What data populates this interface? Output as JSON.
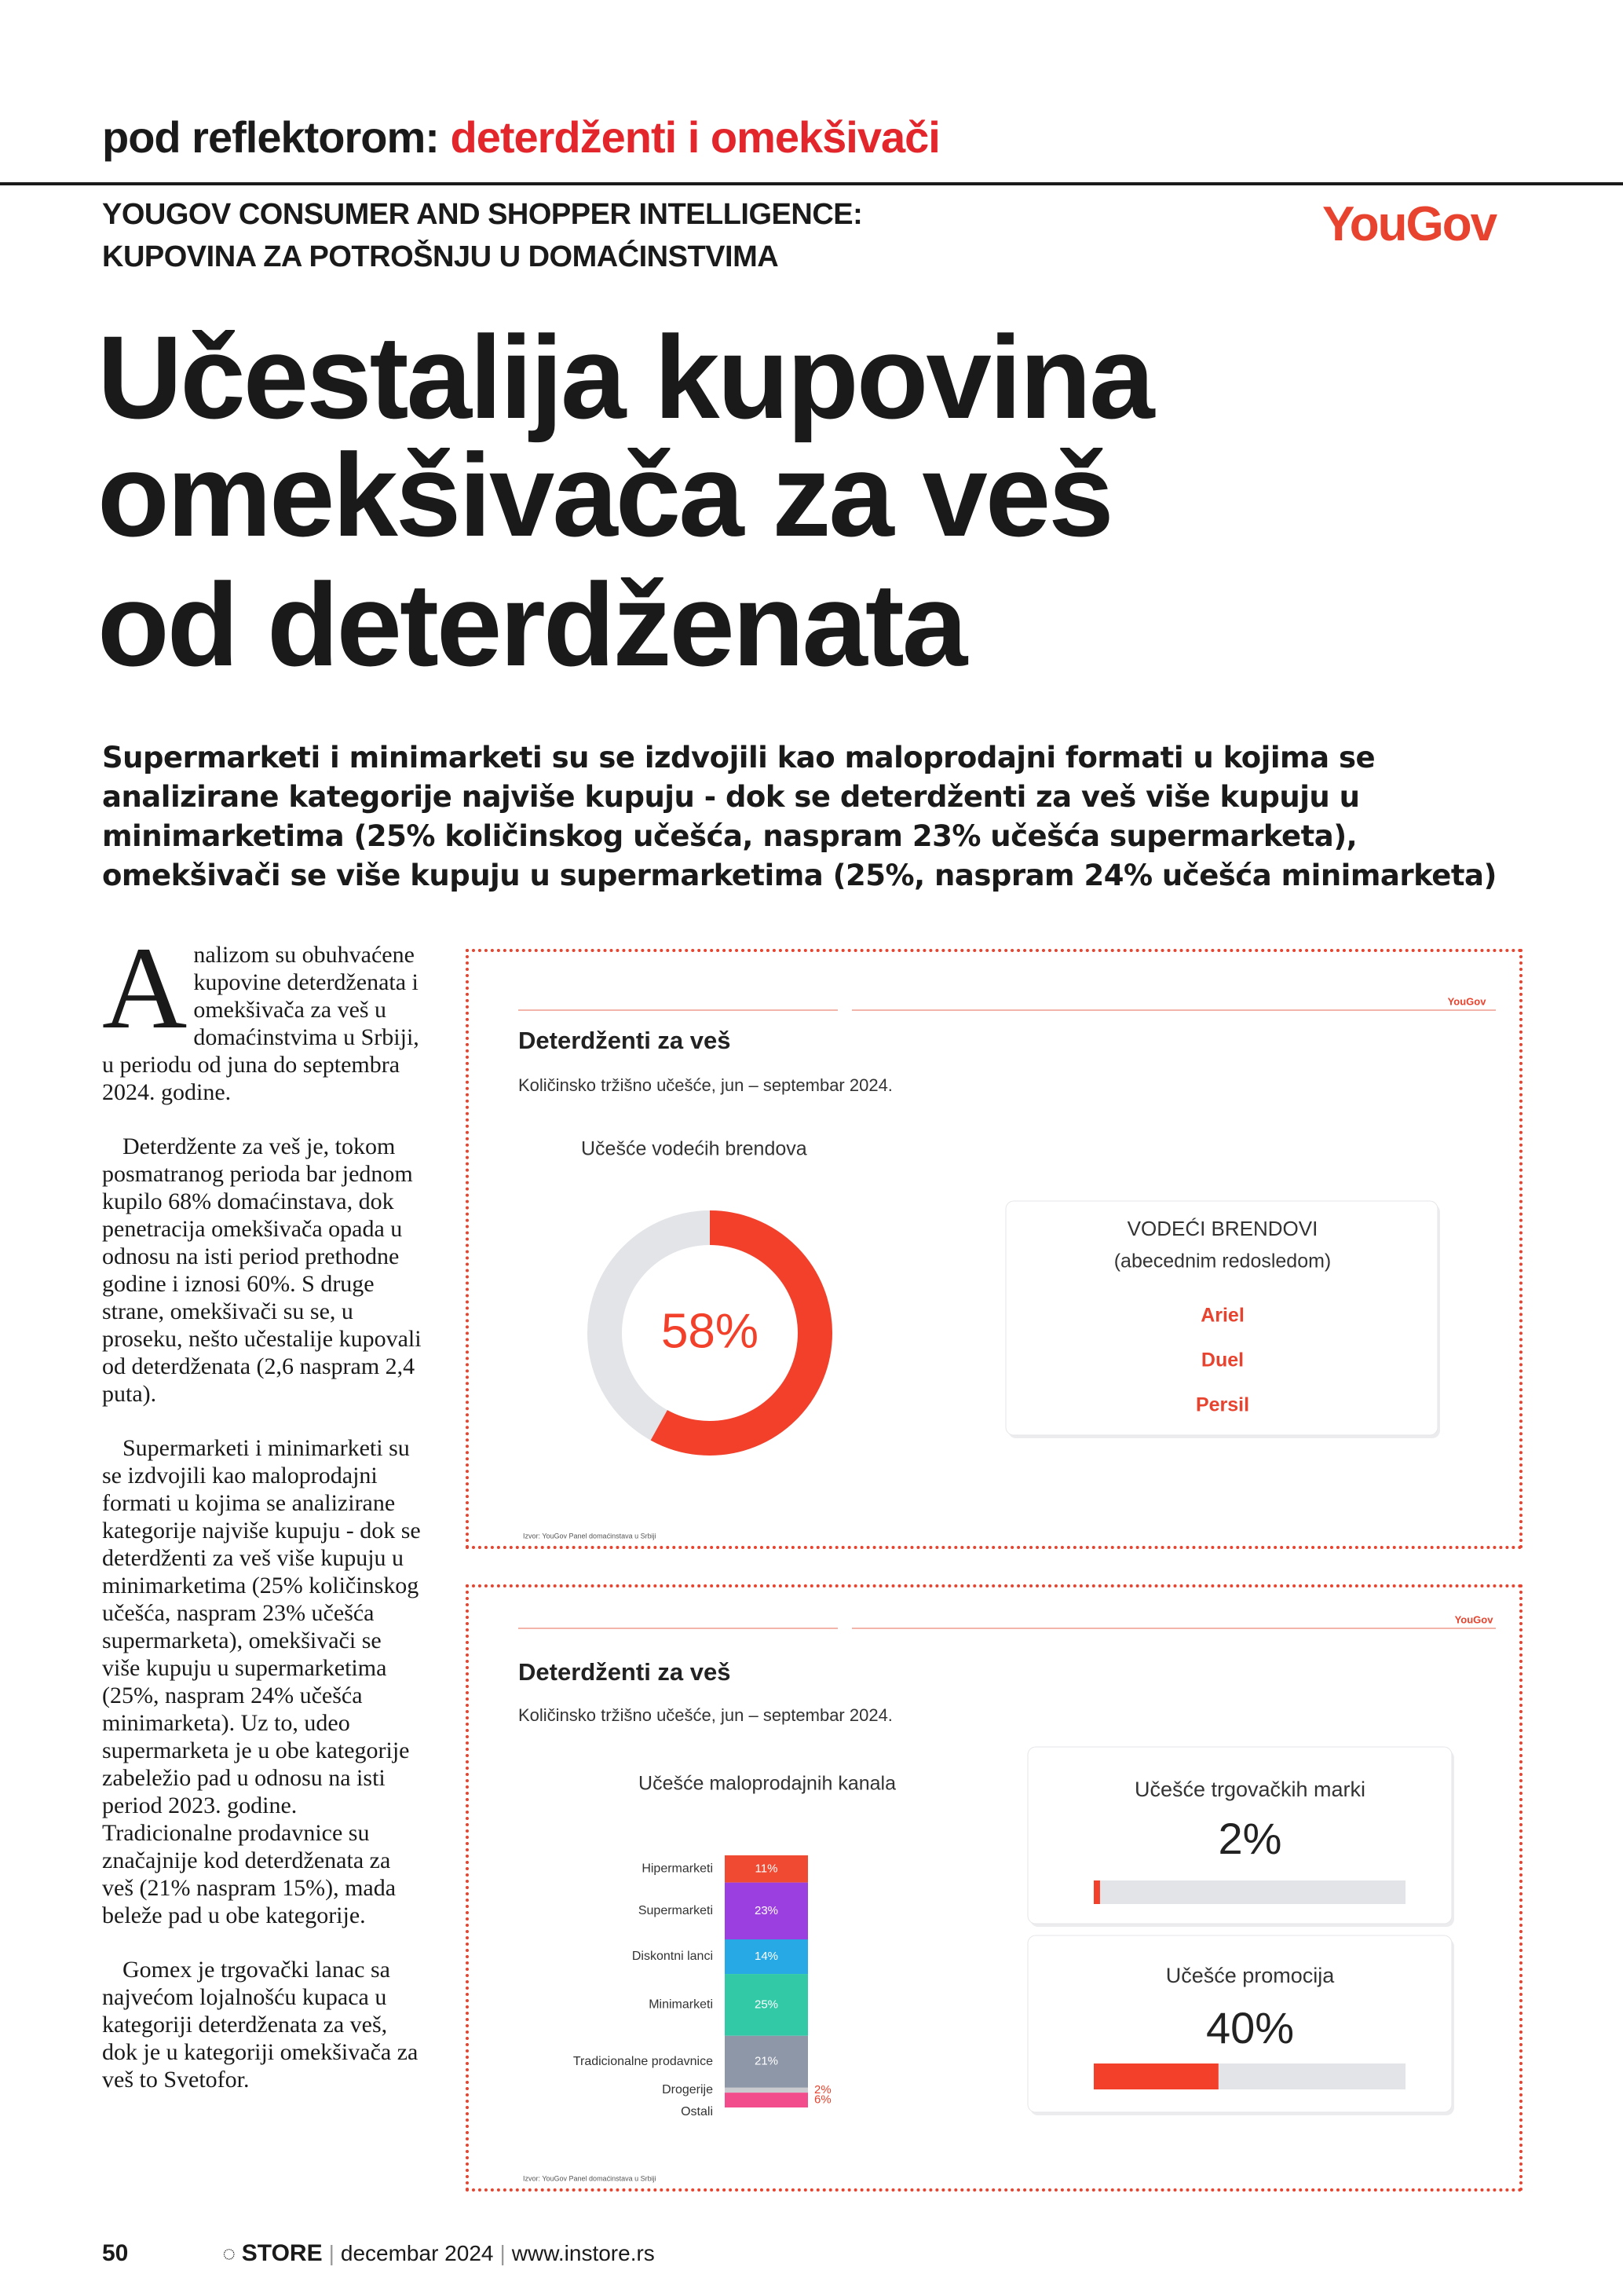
{
  "header": {
    "section": "pod reflektorom:",
    "topic": "deterdženti i omekšivači"
  },
  "kicker": [
    "YOUGOV CONSUMER AND SHOPPER INTELLIGENCE:",
    "KUPOVINA ZA POTROŠNJU U DOMAĆINSTVIMA"
  ],
  "logo": "YouGov",
  "title_lines": [
    "Učestalija kupovina",
    "omekšivača za veš",
    "od deterdženata"
  ],
  "lead": "Supermarketi i minimarketi su se izdvojili kao maloprodajni formati u kojima se analizirane kategorije najviše kupuju - dok se deterdženti za veš više kupuju u minimarketima (25% količinskog učešća, naspram 23% učešća supermarketa), omekšivači se više kupuju u supermarketima (25%, naspram 24% učešća minimarketa)",
  "body": [
    "Analizom su obuhvaćene kupovine deterdženata i omekšivača za veš u domaćinstvima u Srbiji, u periodu od juna do septembra 2024. godine.",
    "Deterdžente za veš je, tokom posmatranog perioda bar jednom kupilo 68% domaćinstava, dok penetracija omekšivača opada u odnosu na isti period prethodne godine i iznosi 60%. S druge strane, omekšivači su se, u proseku, nešto učestalije kupovali od deterdženata (2,6 naspram 2,4 puta).",
    "Supermarketi i minimarketi su se izdvojili kao maloprodajni formati u kojima se analizirane kategorije najviše kupuju - dok se deterdženti za veš više kupuju u minimarketima (25% količinskog učešća, naspram 23% učešća supermarketa), omekšivači se više kupuju u supermarketima (25%, naspram 24% učešća minimarketa). Uz to, udeo supermarketa je u obe kategorije zabeležio pad u odnosu na isti period 2023. godine. Tradicionalne prodavnice su značajnije kod deterdženata za veš (21% naspram 15%), mada beleže pad u obe kategorije.",
    "Gomex je trgovački lanac sa najvećom lojalnošću kupaca u kategoriji deterdženata za veš, dok je u kategoriji omekšivača za veš to Svetofor."
  ],
  "charts": [
    {
      "logo": "YouGov",
      "title": "Deterdženti za veš",
      "subtitle": "Količinsko tržišno učešće, jun – septembar 2024.",
      "share": {
        "title": "Učešće vodećih brendova",
        "value": 58,
        "value_label": "58%",
        "xlim": [
          0,
          100
        ],
        "color": "#f2402a",
        "track_color": "#e3e4e8"
      },
      "brands": {
        "title": "VODEĆI BRENDOVI",
        "subtitle": "(abecednim redosledom)",
        "items": [
          "Ariel",
          "Duel",
          "Persil"
        ]
      },
      "source": "Izvor: YouGov Panel domaćinstava u Srbiji"
    },
    {
      "logo": "YouGov",
      "title": "Deterdženti za veš",
      "subtitle": "Količinsko tržišno učešće, jun – septembar 2024.",
      "channels": {
        "title": "Učešće maloprodajnih kanala",
        "categories": [
          "Hipermarketi",
          "Supermarketi",
          "Diskontni lanci",
          "Minimarketi",
          "Tradicionalne prodavnice",
          "Drogerije",
          "Ostali"
        ],
        "values": [
          11,
          23,
          14,
          25,
          21,
          2,
          6
        ],
        "value_labels": [
          "11%",
          "23%",
          "14%",
          "25%",
          "21%",
          "2%",
          "6%"
        ],
        "colors": [
          "#f04a33",
          "#9b3fe0",
          "#27a9e6",
          "#31c9a6",
          "#8e97a8",
          "#c9cad0",
          "#f24c8c"
        ]
      },
      "private_label": {
        "title": "Učešće trgovačkih marki",
        "value": 2,
        "value_label": "2%",
        "xlim": [
          0,
          100
        ],
        "color": "#f2402a",
        "track_color": "#e3e4e8"
      },
      "promo": {
        "title": "Učešće promocija",
        "value": 40,
        "value_label": "40%",
        "xlim": [
          0,
          100
        ],
        "color": "#f2402a",
        "track_color": "#e3e4e8"
      },
      "source": "Izvor: YouGov Panel domaćinstava u Srbiji"
    }
  ],
  "footer": {
    "page": 50,
    "brand": "STORE",
    "issue": "decembar 2024",
    "site": "www.instore.rs"
  }
}
